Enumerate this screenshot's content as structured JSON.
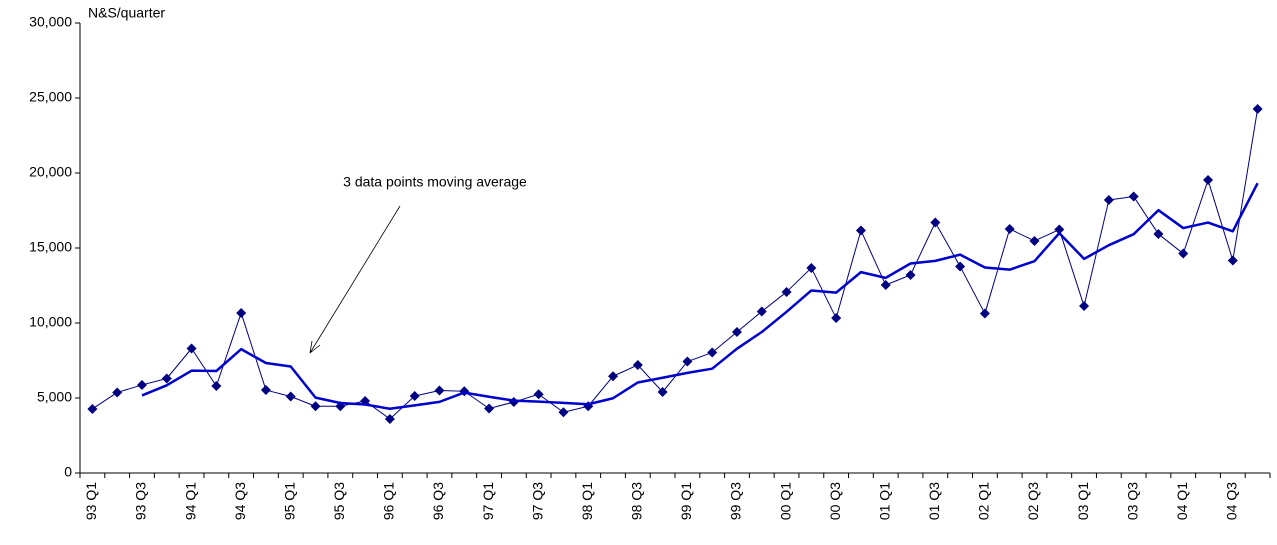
{
  "chart_data": {
    "type": "line",
    "y_label": "N&S/quarter",
    "annotation": "3 data points moving average",
    "categories": [
      "93 Q1",
      null,
      "93 Q3",
      null,
      "94 Q1",
      null,
      "94 Q3",
      null,
      "95 Q1",
      null,
      "95 Q3",
      null,
      "96 Q1",
      null,
      "96 Q3",
      null,
      "97 Q1",
      null,
      "97 Q3",
      null,
      "98 Q1",
      null,
      "98 Q3",
      null,
      "99 Q1",
      null,
      "99 Q3",
      null,
      "00 Q1",
      null,
      "00 Q3",
      null,
      "01 Q1",
      null,
      "01 Q3",
      null,
      "02 Q1",
      null,
      "02 Q3",
      null,
      "03 Q1",
      null,
      "03 Q3",
      null,
      "04 Q1",
      null,
      "04 Q3",
      null
    ],
    "series": [
      {
        "color": "#000080",
        "marker": "diamond",
        "line_width": 1,
        "values": [
          4270,
          5370,
          5870,
          6300,
          8300,
          5800,
          10670,
          5530,
          5100,
          4450,
          4450,
          4800,
          3600,
          5130,
          5500,
          5450,
          4300,
          4730,
          5250,
          4050,
          4450,
          6450,
          7200,
          5400,
          7430,
          8030,
          9400,
          10770,
          12070,
          13670,
          10330,
          16170,
          12530,
          13200,
          16700,
          13770,
          10630,
          16270,
          15470,
          16230,
          11130,
          18200,
          18430,
          15930,
          14630,
          19530,
          14170,
          24270
        ]
      },
      {
        "color": "#0000cc",
        "marker": "none",
        "line_width": 2.5,
        "values": [
          null,
          null,
          5170,
          5847,
          6823,
          6800,
          8257,
          7333,
          7100,
          5027,
          4667,
          4567,
          4283,
          4510,
          4743,
          5360,
          5083,
          4827,
          4760,
          4677,
          4583,
          4983,
          6033,
          6350,
          6677,
          6953,
          8287,
          9400,
          10747,
          12170,
          12023,
          13390,
          13010,
          13967,
          14143,
          14557,
          13700,
          13557,
          14123,
          15990,
          14277,
          15187,
          15920,
          17520,
          16330,
          16697,
          16110,
          19323
        ]
      }
    ],
    "ylim": [
      0,
      30000
    ],
    "yticks": [
      0,
      {
        "value": 5000,
        "label": "5,000"
      },
      {
        "value": 10000,
        "label": "10,000"
      },
      {
        "value": 15000,
        "label": "15,000"
      },
      {
        "value": 20000,
        "label": "20,000"
      },
      {
        "value": 25000,
        "label": "25,000"
      },
      {
        "value": 30000,
        "label": "30,000"
      }
    ],
    "grid": false
  }
}
